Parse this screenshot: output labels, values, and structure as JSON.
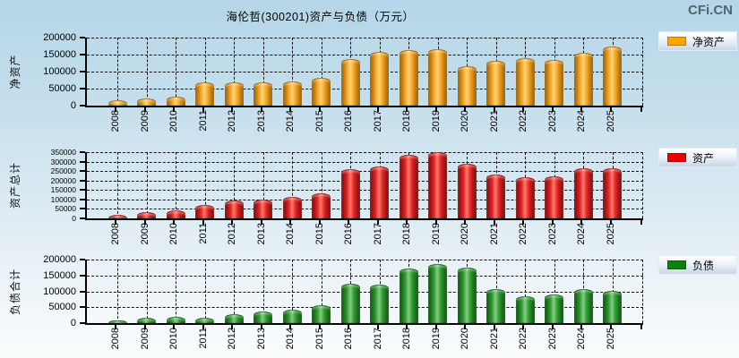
{
  "page": {
    "title": "海伦哲(300201)资产与负债（万元）",
    "logo": "CFi.CN"
  },
  "chart_data": [
    {
      "type": "bar",
      "ylabel": "净资产",
      "legend": "净资产",
      "legend_position": "right",
      "grid": true,
      "bar_color": "#f5a41f",
      "bar_edge": "#8f5c0a",
      "bar_highlight": "#ffd37d",
      "swatch_color": "#ffa500",
      "categories": [
        "2008",
        "2009",
        "2010",
        "2011",
        "2012",
        "2013",
        "2014",
        "2015",
        "2016",
        "2017",
        "2018",
        "2019",
        "2020",
        "2021",
        "2022",
        "2023",
        "2024",
        "2025"
      ],
      "values": [
        12000,
        19000,
        24000,
        65000,
        67000,
        66000,
        68000,
        79000,
        135000,
        154000,
        161000,
        164000,
        113000,
        128000,
        137000,
        131000,
        153000,
        170000
      ],
      "ylim": [
        0,
        200000
      ],
      "yticks": [
        0,
        50000,
        100000,
        150000,
        200000
      ]
    },
    {
      "type": "bar",
      "ylabel": "资产总计",
      "legend": "资产",
      "legend_position": "right",
      "grid": true,
      "bar_color": "#e22222",
      "bar_edge": "#6e0c0c",
      "bar_highlight": "#ff7a6e",
      "swatch_color": "#ee0000",
      "categories": [
        "2008",
        "2009",
        "2010",
        "2011",
        "2012",
        "2013",
        "2014",
        "2015",
        "2016",
        "2017",
        "2018",
        "2019",
        "2020",
        "2021",
        "2022",
        "2023",
        "2024",
        "2025"
      ],
      "values": [
        15000,
        30000,
        38000,
        66000,
        88000,
        95000,
        107000,
        127000,
        257000,
        268000,
        330000,
        347000,
        283000,
        229000,
        215000,
        219000,
        258000,
        261000
      ],
      "ylim": [
        0,
        350000
      ],
      "yticks": [
        0,
        50000,
        100000,
        150000,
        200000,
        250000,
        300000,
        350000
      ]
    },
    {
      "type": "bar",
      "ylabel": "负债合计",
      "legend": "负债",
      "legend_position": "right",
      "grid": true,
      "bar_color": "#2e9a2e",
      "bar_edge": "#0e4d0e",
      "bar_highlight": "#86cc86",
      "swatch_color": "#0c810c",
      "categories": [
        "2008",
        "2009",
        "2010",
        "2011",
        "2012",
        "2013",
        "2014",
        "2015",
        "2016",
        "2017",
        "2018",
        "2019",
        "2020",
        "2021",
        "2022",
        "2023",
        "2024",
        "2025"
      ],
      "values": [
        6000,
        13000,
        18000,
        13000,
        25000,
        34000,
        40000,
        53000,
        122000,
        119000,
        169000,
        183000,
        172000,
        105000,
        82000,
        87000,
        105000,
        98000
      ],
      "ylim": [
        0,
        200000
      ],
      "yticks": [
        0,
        50000,
        100000,
        150000,
        200000
      ]
    }
  ]
}
